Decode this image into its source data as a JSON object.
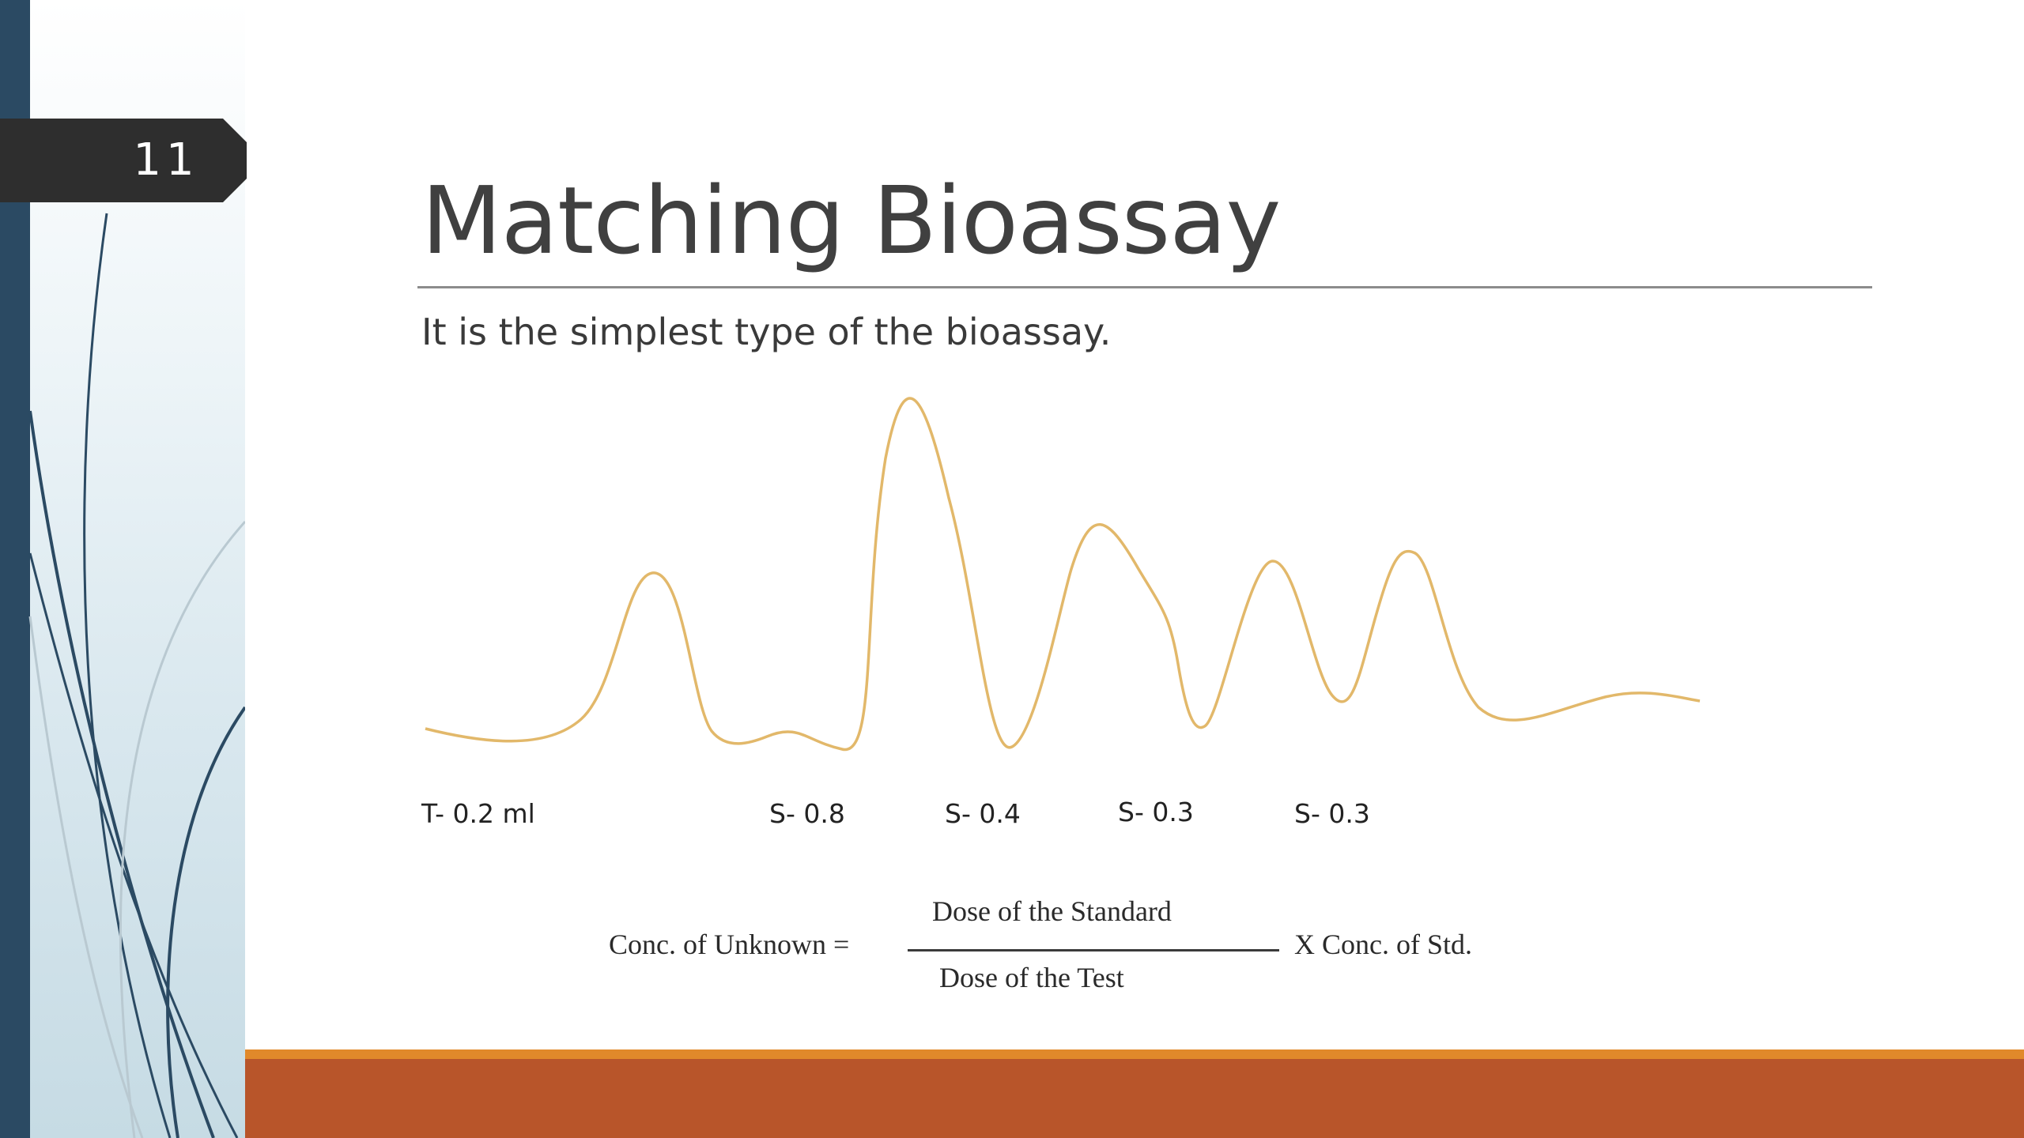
{
  "slide": {
    "number": "11",
    "title": "Matching Bioassay",
    "subtitle": "It is the simplest type of the bioassay."
  },
  "chart_labels": [
    "T- 0.2 ml",
    "S- 0.8",
    "S- 0.4",
    "S- 0.3",
    "S- 0.3"
  ],
  "formula": {
    "left": "Conc. of Unknown =",
    "numerator": "Dose of the Standard",
    "denominator": "Dose of the Test",
    "right": "X Conc. of Std."
  },
  "colors": {
    "trace": "#e2b86a",
    "left_bar": "#2b4a63",
    "number_tab": "#2e2e2e",
    "bottom_orange": "#e1892a",
    "bottom_rust": "#b8552a"
  }
}
